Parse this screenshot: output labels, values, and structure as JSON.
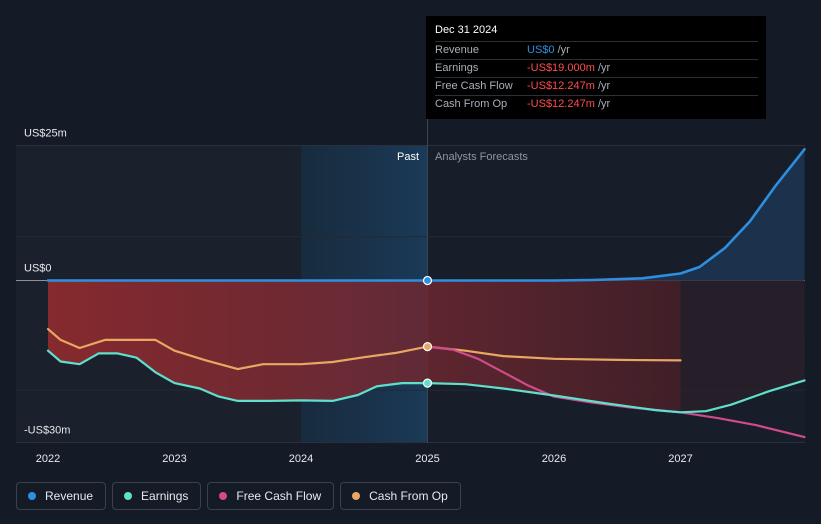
{
  "tooltip": {
    "date": "Dec 31 2024",
    "rows": [
      {
        "label": "Revenue",
        "value": "US$0",
        "unit": "/yr",
        "color": "#2e8fe0"
      },
      {
        "label": "Earnings",
        "value": "-US$19.000m",
        "unit": "/yr",
        "color": "#ff4d4d"
      },
      {
        "label": "Free Cash Flow",
        "value": "-US$12.247m",
        "unit": "/yr",
        "color": "#ff4d4d"
      },
      {
        "label": "Cash From Op",
        "value": "-US$12.247m",
        "unit": "/yr",
        "color": "#ff4d4d"
      }
    ]
  },
  "regions": {
    "past": "Past",
    "forecast": "Analysts Forecasts"
  },
  "legend": [
    {
      "label": "Revenue",
      "color": "#2e8fe0"
    },
    {
      "label": "Earnings",
      "color": "#5ee0cc"
    },
    {
      "label": "Free Cash Flow",
      "color": "#d04a8c"
    },
    {
      "label": "Cash From Op",
      "color": "#e8a862"
    }
  ],
  "chart_data": {
    "type": "line",
    "y_tick_labels": [
      "US$25m",
      "US$0",
      "-US$30m"
    ],
    "y_ticks": [
      25,
      0,
      -30
    ],
    "ylim": [
      -30,
      25
    ],
    "xlim": [
      2021.79,
      2027.98
    ],
    "x_ticks": [
      2022,
      2023,
      2024,
      2025,
      2026,
      2027
    ],
    "x_tick_labels": [
      "2022",
      "2023",
      "2024",
      "2025",
      "2026",
      "2027"
    ],
    "divider_x": 2025.0,
    "highlight_range": [
      2024.0,
      2025.0
    ],
    "grid": true,
    "legend_position": "bottom",
    "series": [
      {
        "name": "Revenue",
        "color": "#2e8fe0",
        "points": [
          [
            2022.0,
            0
          ],
          [
            2023.0,
            0
          ],
          [
            2024.0,
            0
          ],
          [
            2025.0,
            0
          ],
          [
            2026.0,
            0
          ],
          [
            2026.3,
            0.1
          ],
          [
            2026.7,
            0.4
          ],
          [
            2027.0,
            1.3
          ],
          [
            2027.15,
            2.5
          ],
          [
            2027.35,
            6
          ],
          [
            2027.55,
            11
          ],
          [
            2027.75,
            17.5
          ],
          [
            2027.98,
            24.3
          ]
        ]
      },
      {
        "name": "Earnings",
        "color": "#5ee0cc",
        "points": [
          [
            2022.0,
            -13
          ],
          [
            2022.1,
            -15
          ],
          [
            2022.25,
            -15.5
          ],
          [
            2022.4,
            -13.5
          ],
          [
            2022.55,
            -13.5
          ],
          [
            2022.7,
            -14.3
          ],
          [
            2022.85,
            -17
          ],
          [
            2023.0,
            -19
          ],
          [
            2023.2,
            -20
          ],
          [
            2023.35,
            -21.5
          ],
          [
            2023.5,
            -22.3
          ],
          [
            2023.75,
            -22.3
          ],
          [
            2024.0,
            -22.2
          ],
          [
            2024.25,
            -22.3
          ],
          [
            2024.45,
            -21.2
          ],
          [
            2024.6,
            -19.6
          ],
          [
            2024.8,
            -19.0
          ],
          [
            2025.0,
            -19.0
          ],
          [
            2025.3,
            -19.2
          ],
          [
            2025.6,
            -20
          ],
          [
            2026.0,
            -21.3
          ],
          [
            2026.4,
            -22.7
          ],
          [
            2026.8,
            -24
          ],
          [
            2027.0,
            -24.4
          ],
          [
            2027.2,
            -24.2
          ],
          [
            2027.4,
            -23
          ],
          [
            2027.7,
            -20.5
          ],
          [
            2027.98,
            -18.5
          ]
        ]
      },
      {
        "name": "Free Cash Flow",
        "color": "#d04a8c",
        "points": [
          [
            2025.0,
            -12.25
          ],
          [
            2025.2,
            -12.8
          ],
          [
            2025.4,
            -14.5
          ],
          [
            2025.6,
            -17
          ],
          [
            2025.8,
            -19.5
          ],
          [
            2026.0,
            -21.5
          ],
          [
            2026.3,
            -22.6
          ],
          [
            2026.6,
            -23.5
          ],
          [
            2027.0,
            -24.4
          ],
          [
            2027.3,
            -25.5
          ],
          [
            2027.6,
            -26.8
          ],
          [
            2027.98,
            -29
          ]
        ]
      },
      {
        "name": "Cash From Op",
        "color": "#e8a862",
        "points": [
          [
            2022.0,
            -9
          ],
          [
            2022.1,
            -11
          ],
          [
            2022.25,
            -12.5
          ],
          [
            2022.45,
            -11
          ],
          [
            2022.7,
            -11
          ],
          [
            2022.85,
            -11
          ],
          [
            2023.0,
            -13
          ],
          [
            2023.25,
            -14.8
          ],
          [
            2023.5,
            -16.4
          ],
          [
            2023.7,
            -15.5
          ],
          [
            2024.0,
            -15.5
          ],
          [
            2024.25,
            -15.1
          ],
          [
            2024.5,
            -14.2
          ],
          [
            2024.75,
            -13.4
          ],
          [
            2025.0,
            -12.25
          ],
          [
            2025.3,
            -13
          ],
          [
            2025.6,
            -14
          ],
          [
            2026.0,
            -14.5
          ],
          [
            2026.5,
            -14.7
          ],
          [
            2027.0,
            -14.8
          ]
        ]
      }
    ]
  }
}
